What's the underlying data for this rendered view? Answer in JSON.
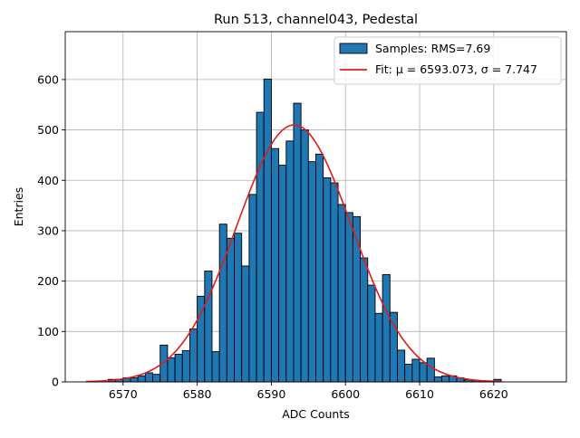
{
  "chart_data": {
    "type": "bar",
    "title": "Run 513, channel043, Pedestal",
    "xlabel": "ADC Counts",
    "ylabel": "Entries",
    "xlim": [
      6562.2,
      6629.8
    ],
    "ylim": [
      0,
      695
    ],
    "xticks": [
      6570,
      6580,
      6590,
      6600,
      6610,
      6620
    ],
    "yticks": [
      0,
      100,
      200,
      300,
      400,
      500,
      600
    ],
    "grid": true,
    "legend_position": "top-right",
    "bin_width": 1,
    "bins": [
      {
        "x": 6568,
        "y": 5
      },
      {
        "x": 6569,
        "y": 5
      },
      {
        "x": 6570,
        "y": 8
      },
      {
        "x": 6571,
        "y": 8
      },
      {
        "x": 6572,
        "y": 12
      },
      {
        "x": 6573,
        "y": 18
      },
      {
        "x": 6574,
        "y": 15
      },
      {
        "x": 6575,
        "y": 73
      },
      {
        "x": 6576,
        "y": 48
      },
      {
        "x": 6577,
        "y": 55
      },
      {
        "x": 6578,
        "y": 62
      },
      {
        "x": 6579,
        "y": 105
      },
      {
        "x": 6580,
        "y": 170
      },
      {
        "x": 6581,
        "y": 220
      },
      {
        "x": 6582,
        "y": 60
      },
      {
        "x": 6583,
        "y": 313
      },
      {
        "x": 6584,
        "y": 285
      },
      {
        "x": 6585,
        "y": 295
      },
      {
        "x": 6586,
        "y": 230
      },
      {
        "x": 6587,
        "y": 372
      },
      {
        "x": 6588,
        "y": 535
      },
      {
        "x": 6589,
        "y": 601
      },
      {
        "x": 6590,
        "y": 463
      },
      {
        "x": 6591,
        "y": 430
      },
      {
        "x": 6592,
        "y": 478
      },
      {
        "x": 6593,
        "y": 553
      },
      {
        "x": 6594,
        "y": 500
      },
      {
        "x": 6595,
        "y": 437
      },
      {
        "x": 6596,
        "y": 452
      },
      {
        "x": 6597,
        "y": 405
      },
      {
        "x": 6598,
        "y": 395
      },
      {
        "x": 6599,
        "y": 352
      },
      {
        "x": 6600,
        "y": 336
      },
      {
        "x": 6601,
        "y": 328
      },
      {
        "x": 6602,
        "y": 246
      },
      {
        "x": 6603,
        "y": 192
      },
      {
        "x": 6604,
        "y": 136
      },
      {
        "x": 6605,
        "y": 213
      },
      {
        "x": 6606,
        "y": 138
      },
      {
        "x": 6607,
        "y": 63
      },
      {
        "x": 6608,
        "y": 35
      },
      {
        "x": 6609,
        "y": 45
      },
      {
        "x": 6610,
        "y": 38
      },
      {
        "x": 6611,
        "y": 47
      },
      {
        "x": 6612,
        "y": 10
      },
      {
        "x": 6613,
        "y": 12
      },
      {
        "x": 6614,
        "y": 12
      },
      {
        "x": 6615,
        "y": 8
      },
      {
        "x": 6616,
        "y": 4
      },
      {
        "x": 6617,
        "y": 3
      },
      {
        "x": 6618,
        "y": 2
      },
      {
        "x": 6619,
        "y": 2
      },
      {
        "x": 6620,
        "y": 5
      }
    ],
    "fit": {
      "mu": 6593.073,
      "sigma": 7.747,
      "amplitude": 510,
      "x_range": [
        6565,
        6621
      ]
    },
    "series": [
      {
        "name": "Samples: RMS=7.69",
        "kind": "histogram",
        "color": "#1f77b4",
        "edgecolor": "#000000"
      },
      {
        "name": "Fit: μ = 6593.073, σ = 7.747",
        "kind": "line",
        "color": "#e31a1c"
      }
    ]
  }
}
